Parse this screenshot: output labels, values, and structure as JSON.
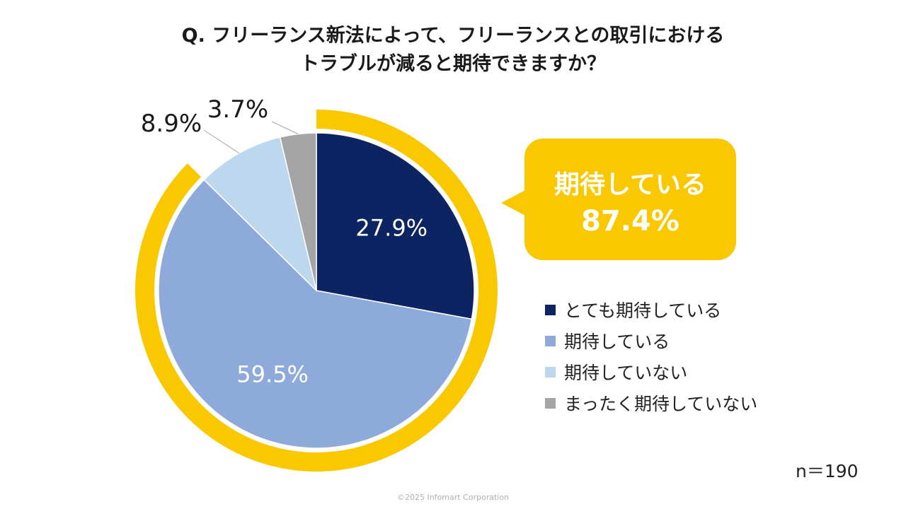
{
  "chart_data": {
    "type": "pie",
    "title_line1": "Q. フリーランス新法によって、フリーランスとの取引における",
    "title_line2": "トラブルが減ると期待できますか？",
    "slices": [
      {
        "label": "とても期待している",
        "value": 27.9,
        "value_label": "27.9%",
        "color": "#0c2461"
      },
      {
        "label": "期待している",
        "value": 59.5,
        "value_label": "59.5%",
        "color": "#8eaadb"
      },
      {
        "label": "期待していない",
        "value": 8.9,
        "value_label": "8.9%",
        "color": "#bdd7ee"
      },
      {
        "label": "まったく期待していない",
        "value": 3.7,
        "value_label": "3.7%",
        "color": "#a5a5a5"
      }
    ],
    "highlight": {
      "label": "期待している",
      "value": 87.4,
      "value_text": "87.4%",
      "color": "#f9c800"
    },
    "legend_position": "right"
  },
  "sample_size": "n＝190",
  "copyright": "©2025 Infomart Corporation"
}
